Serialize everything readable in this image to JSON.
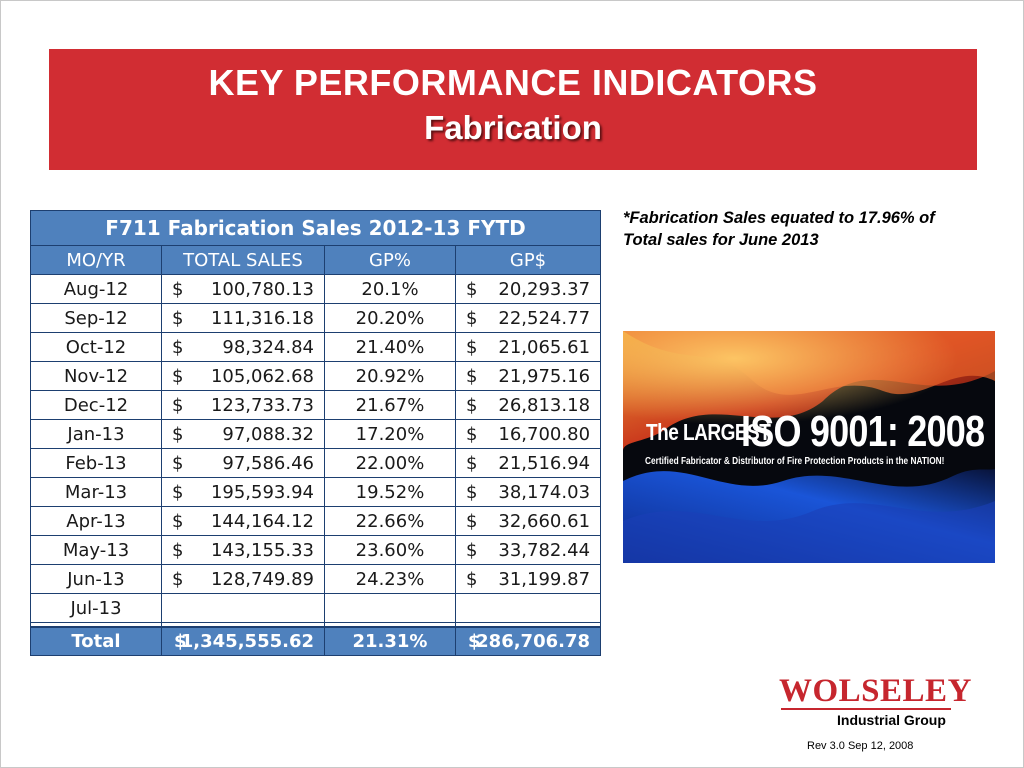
{
  "title": {
    "line1": "KEY PERFORMANCE INDICATORS",
    "line2": "Fabrication"
  },
  "table": {
    "caption": "F711 Fabrication Sales 2012-13 FYTD",
    "headers": [
      "MO/YR",
      "TOTAL SALES",
      "GP%",
      "GP$"
    ],
    "currency": "$",
    "rows": [
      {
        "month": "Aug-12",
        "sales": "100,780.13",
        "gp_pct": "20.1%",
        "gp_dollar": "20,293.37"
      },
      {
        "month": "Sep-12",
        "sales": "111,316.18",
        "gp_pct": "20.20%",
        "gp_dollar": "22,524.77"
      },
      {
        "month": "Oct-12",
        "sales": "98,324.84",
        "gp_pct": "21.40%",
        "gp_dollar": "21,065.61"
      },
      {
        "month": "Nov-12",
        "sales": "105,062.68",
        "gp_pct": "20.92%",
        "gp_dollar": "21,975.16"
      },
      {
        "month": "Dec-12",
        "sales": "123,733.73",
        "gp_pct": "21.67%",
        "gp_dollar": "26,813.18"
      },
      {
        "month": "Jan-13",
        "sales": "97,088.32",
        "gp_pct": "17.20%",
        "gp_dollar": "16,700.80"
      },
      {
        "month": "Feb-13",
        "sales": "97,586.46",
        "gp_pct": "22.00%",
        "gp_dollar": "21,516.94"
      },
      {
        "month": "Mar-13",
        "sales": "195,593.94",
        "gp_pct": "19.52%",
        "gp_dollar": "38,174.03"
      },
      {
        "month": "Apr-13",
        "sales": "144,164.12",
        "gp_pct": "22.66%",
        "gp_dollar": "32,660.61"
      },
      {
        "month": "May-13",
        "sales": "143,155.33",
        "gp_pct": "23.60%",
        "gp_dollar": "33,782.44"
      },
      {
        "month": "Jun-13",
        "sales": "128,749.89",
        "gp_pct": "24.23%",
        "gp_dollar": "31,199.87"
      },
      {
        "month": "Jul-13",
        "sales": "",
        "gp_pct": "",
        "gp_dollar": ""
      }
    ],
    "total": {
      "label": "Total",
      "sales": "1,345,555.62",
      "gp_pct": "21.31%",
      "gp_dollar": "286,706.78"
    }
  },
  "note": {
    "line1": "*Fabrication Sales equated to 17.96% of",
    "line2": "Total sales for June 2013"
  },
  "iso_image": {
    "prefix": "The LARGEST",
    "headline": "ISO 9001: 2008",
    "subline": "Certified Fabricator & Distributor of Fire Protection Products in the NATION!"
  },
  "logo": {
    "wordmark": "WOLSELEY",
    "subtitle": "Industrial Group"
  },
  "footer": {
    "revision": "Rev 3.0 Sep 12, 2008"
  },
  "colors": {
    "banner_red": "#d12d33",
    "table_blue": "#4f81bd",
    "table_border": "#1d3f70",
    "logo_red": "#c6262e"
  }
}
